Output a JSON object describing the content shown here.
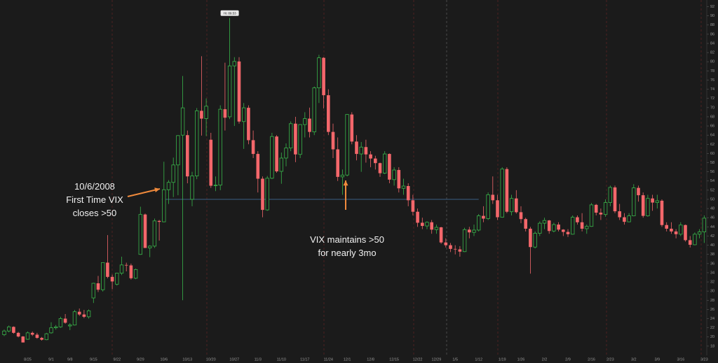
{
  "chart_data": {
    "type": "candlestick",
    "high_label": "Hi: 89.53",
    "annotations": [
      "10/6/2008",
      "First Time VIX",
      "closes >50",
      "VIX maintains >50",
      "for nearly 3mo"
    ],
    "hline": 50,
    "up_color": "#39b54a",
    "down_color": "#f4676b",
    "line_color": "#3b5f86",
    "arrow_color": "#f08a3c",
    "ylim": [
      16,
      93
    ],
    "yticks": [
      18,
      20,
      22,
      24,
      26,
      28,
      30,
      32,
      34,
      36,
      38,
      40,
      42,
      44,
      46,
      48,
      50,
      52,
      54,
      56,
      58,
      60,
      62,
      64,
      66,
      68,
      70,
      72,
      74,
      76,
      78,
      80,
      82,
      84,
      86,
      88,
      90,
      92
    ],
    "categories": [
      null,
      null,
      null,
      null,
      null,
      "8/25",
      null,
      null,
      null,
      null,
      "9/1",
      null,
      null,
      null,
      "9/8",
      null,
      null,
      null,
      null,
      "9/15",
      null,
      null,
      null,
      null,
      "9/22",
      null,
      null,
      null,
      null,
      "9/29",
      null,
      null,
      null,
      null,
      "10/6",
      null,
      null,
      null,
      null,
      "10/13",
      null,
      null,
      null,
      null,
      "10/20",
      null,
      null,
      null,
      null,
      "10/27",
      null,
      null,
      null,
      null,
      "11/3",
      null,
      null,
      null,
      null,
      "11/10",
      null,
      null,
      null,
      null,
      "11/17",
      null,
      null,
      null,
      null,
      "11/24",
      null,
      null,
      null,
      "12/1",
      null,
      null,
      null,
      null,
      "12/8",
      null,
      null,
      null,
      null,
      "12/15",
      null,
      null,
      null,
      null,
      "12/22",
      null,
      null,
      null,
      "12/29",
      null,
      null,
      null,
      "1/5",
      null,
      null,
      null,
      null,
      "1/12",
      null,
      null,
      null,
      null,
      "1/19",
      null,
      null,
      null,
      "1/26",
      null,
      null,
      null,
      null,
      "2/2",
      null,
      null,
      null,
      null,
      "2/9",
      null,
      null,
      null,
      null,
      "2/16",
      null,
      null,
      null,
      "2/23",
      null,
      null,
      null,
      null,
      "3/2",
      null,
      null,
      null,
      null,
      "3/9",
      null,
      null,
      null,
      null,
      "3/16",
      null,
      null,
      null,
      null,
      "3/23"
    ],
    "candles": [
      [
        20.5,
        21.6,
        20.2,
        21.3
      ],
      [
        21.3,
        22.5,
        21.0,
        22.2
      ],
      [
        22.2,
        22.3,
        20.7,
        20.9
      ],
      [
        20.9,
        21.1,
        19.9,
        20.1
      ],
      [
        20.1,
        20.2,
        18.8,
        18.8
      ],
      [
        19.5,
        21.2,
        19.4,
        20.9
      ],
      [
        20.9,
        21.2,
        20.2,
        20.5
      ],
      [
        20.5,
        20.9,
        19.6,
        19.8
      ],
      [
        19.8,
        20.0,
        19.2,
        19.4
      ],
      [
        19.4,
        20.9,
        19.3,
        20.7
      ],
      [
        20.9,
        23.2,
        20.7,
        22.0
      ],
      [
        22.0,
        22.6,
        21.6,
        22.2
      ],
      [
        22.2,
        24.4,
        22.0,
        24.0
      ],
      [
        24.0,
        25.0,
        22.9,
        23.1
      ],
      [
        22.4,
        23.0,
        21.5,
        22.6
      ],
      [
        22.6,
        25.9,
        22.5,
        25.5
      ],
      [
        25.5,
        26.2,
        24.6,
        24.9
      ],
      [
        24.9,
        25.9,
        24.1,
        24.4
      ],
      [
        24.4,
        26.0,
        24.0,
        25.7
      ],
      [
        28.5,
        31.8,
        27.4,
        31.7
      ],
      [
        31.7,
        33.3,
        29.8,
        30.3
      ],
      [
        30.3,
        36.2,
        29.9,
        36.2
      ],
      [
        36.2,
        42.2,
        32.8,
        33.1
      ],
      [
        33.1,
        33.6,
        30.4,
        32.1
      ],
      [
        31.5,
        34.0,
        31.2,
        33.9
      ],
      [
        33.9,
        37.5,
        33.5,
        35.7
      ],
      [
        35.7,
        36.2,
        34.3,
        35.6
      ],
      [
        35.6,
        36.0,
        32.5,
        32.8
      ],
      [
        32.8,
        34.9,
        32.6,
        34.7
      ],
      [
        38.0,
        48.4,
        37.9,
        46.7
      ],
      [
        46.7,
        46.9,
        39.4,
        39.4
      ],
      [
        39.4,
        40.0,
        37.4,
        39.8
      ],
      [
        39.8,
        45.8,
        39.4,
        45.3
      ],
      [
        45.3,
        45.5,
        41.0,
        45.1
      ],
      [
        45.1,
        58.2,
        45.0,
        52.1
      ],
      [
        52.1,
        54.2,
        49.0,
        53.7
      ],
      [
        53.7,
        59.1,
        50.5,
        57.5
      ],
      [
        57.5,
        64.0,
        50.9,
        63.9
      ],
      [
        64.0,
        76.9,
        28.0,
        69.95
      ],
      [
        64.0,
        65.0,
        53.5,
        55.0
      ],
      [
        50.0,
        56.0,
        48.5,
        55.1
      ],
      [
        55.1,
        69.9,
        54.4,
        69.3
      ],
      [
        69.3,
        81.2,
        63.9,
        67.6
      ],
      [
        67.6,
        72.0,
        63.8,
        70.3
      ],
      [
        63.0,
        64.5,
        52.5,
        52.97
      ],
      [
        52.97,
        55.0,
        51.8,
        53.1
      ],
      [
        53.1,
        70.5,
        52.0,
        69.65
      ],
      [
        69.65,
        79.8,
        65.0,
        67.8
      ],
      [
        68.0,
        89.53,
        67.5,
        79.1
      ],
      [
        79.1,
        81.0,
        66.0,
        80.06
      ],
      [
        80.06,
        81.0,
        66.5,
        66.96
      ],
      [
        66.96,
        71.0,
        61.0,
        69.96
      ],
      [
        69.96,
        70.5,
        62.0,
        62.9
      ],
      [
        62.9,
        65.0,
        59.0,
        59.9
      ],
      [
        59.9,
        60.5,
        51.5,
        54.5
      ],
      [
        54.5,
        55.0,
        46.1,
        47.7
      ],
      [
        47.7,
        55.1,
        47.5,
        54.6
      ],
      [
        54.6,
        64.5,
        54.4,
        63.7
      ],
      [
        63.7,
        64.0,
        55.8,
        56.1
      ],
      [
        56.1,
        60.2,
        53.4,
        59.0
      ],
      [
        59.0,
        62.2,
        57.2,
        61.2
      ],
      [
        61.2,
        67.0,
        60.5,
        66.5
      ],
      [
        66.5,
        68.0,
        58.1,
        59.8
      ],
      [
        59.8,
        66.4,
        59.0,
        66.3
      ],
      [
        66.3,
        69.0,
        63.5,
        67.6
      ],
      [
        67.6,
        70.0,
        63.5,
        64.7
      ],
      [
        64.7,
        74.6,
        64.0,
        74.3
      ],
      [
        74.3,
        81.5,
        71.0,
        80.86
      ],
      [
        80.86,
        81.0,
        69.8,
        72.7
      ],
      [
        72.7,
        74.0,
        64.0,
        64.7
      ],
      [
        64.7,
        66.5,
        59.0,
        60.9
      ],
      [
        60.9,
        63.5,
        54.0,
        54.9
      ],
      [
        54.9,
        56.5,
        51.0,
        55.3
      ],
      [
        55.3,
        68.6,
        55.0,
        68.5
      ],
      [
        68.5,
        69.0,
        62.0,
        62.6
      ],
      [
        62.6,
        64.0,
        58.5,
        59.9
      ],
      [
        59.9,
        62.5,
        56.0,
        61.4
      ],
      [
        61.4,
        63.0,
        58.0,
        59.8
      ],
      [
        59.8,
        60.5,
        57.0,
        58.9
      ],
      [
        58.9,
        59.5,
        56.5,
        57.9
      ],
      [
        57.9,
        58.0,
        54.9,
        55.7
      ],
      [
        55.7,
        60.5,
        55.5,
        59.9
      ],
      [
        59.9,
        60.0,
        53.5,
        54.3
      ],
      [
        54.3,
        57.0,
        53.0,
        56.4
      ],
      [
        56.4,
        57.0,
        51.5,
        52.4
      ],
      [
        52.4,
        54.5,
        51.0,
        52.9
      ],
      [
        52.9,
        53.5,
        48.5,
        49.8
      ],
      [
        49.8,
        51.0,
        46.5,
        47.3
      ],
      [
        47.3,
        48.0,
        44.0,
        44.9
      ],
      [
        44.9,
        46.0,
        43.5,
        44.2
      ],
      [
        44.2,
        45.2,
        43.5,
        45.0
      ],
      [
        45.0,
        45.5,
        42.5,
        43.4
      ],
      [
        43.4,
        44.5,
        42.5,
        43.9
      ],
      [
        43.9,
        44.0,
        40.3,
        40.6
      ],
      [
        40.6,
        41.5,
        39.5,
        40.0
      ],
      [
        40.0,
        40.5,
        38.5,
        39.2
      ],
      [
        39.2,
        40.0,
        38.0,
        39.1
      ],
      [
        39.1,
        39.8,
        37.5,
        38.6
      ],
      [
        38.6,
        43.8,
        38.5,
        43.4
      ],
      [
        43.4,
        44.0,
        41.5,
        42.8
      ],
      [
        42.8,
        44.5,
        42.0,
        43.3
      ],
      [
        43.3,
        46.8,
        43.0,
        46.4
      ],
      [
        46.4,
        48.5,
        45.0,
        45.8
      ],
      [
        45.8,
        51.5,
        45.5,
        51.0
      ],
      [
        51.0,
        55.0,
        49.0,
        49.8
      ],
      [
        49.8,
        51.0,
        45.5,
        46.1
      ],
      [
        46.1,
        57.0,
        46.0,
        56.6
      ],
      [
        56.6,
        57.0,
        47.0,
        47.3
      ],
      [
        47.3,
        51.0,
        46.5,
        50.2
      ],
      [
        50.2,
        52.0,
        46.9,
        47.2
      ],
      [
        47.2,
        48.5,
        44.8,
        45.7
      ],
      [
        45.7,
        46.0,
        43.0,
        43.6
      ],
      [
        43.6,
        44.0,
        33.8,
        39.6
      ],
      [
        39.6,
        43.0,
        39.3,
        42.6
      ],
      [
        42.6,
        45.2,
        42.0,
        44.8
      ],
      [
        44.8,
        46.0,
        43.5,
        45.4
      ],
      [
        45.4,
        45.5,
        42.5,
        43.1
      ],
      [
        43.1,
        44.9,
        42.8,
        44.5
      ],
      [
        44.5,
        45.0,
        43.0,
        43.4
      ],
      [
        43.4,
        43.5,
        42.0,
        42.9
      ],
      [
        42.9,
        43.5,
        41.8,
        42.4
      ],
      [
        42.4,
        46.5,
        42.3,
        46.1
      ],
      [
        46.1,
        46.5,
        44.5,
        45.0
      ],
      [
        45.0,
        47.0,
        43.0,
        43.6
      ],
      [
        43.6,
        44.5,
        42.5,
        44.1
      ],
      [
        44.1,
        49.2,
        44.0,
        48.8
      ],
      [
        48.8,
        49.0,
        46.5,
        47.1
      ],
      [
        47.1,
        48.0,
        45.5,
        46.7
      ],
      [
        46.7,
        50.0,
        46.2,
        49.3
      ],
      [
        49.3,
        53.0,
        48.5,
        52.6
      ],
      [
        52.6,
        53.0,
        47.0,
        47.4
      ],
      [
        47.4,
        49.0,
        45.5,
        46.1
      ],
      [
        46.1,
        47.0,
        44.5,
        45.1
      ],
      [
        45.1,
        47.0,
        45.0,
        46.4
      ],
      [
        46.4,
        53.3,
        46.3,
        52.5
      ],
      [
        52.5,
        53.0,
        49.5,
        50.9
      ],
      [
        50.9,
        51.5,
        46.0,
        46.4
      ],
      [
        46.4,
        51.0,
        46.2,
        50.2
      ],
      [
        50.2,
        51.0,
        47.5,
        49.3
      ],
      [
        49.3,
        51.0,
        48.0,
        49.7
      ],
      [
        49.7,
        50.0,
        44.0,
        44.4
      ],
      [
        44.4,
        45.0,
        43.0,
        43.6
      ],
      [
        43.6,
        45.0,
        42.5,
        43.0
      ],
      [
        43.0,
        43.5,
        41.5,
        42.4
      ],
      [
        42.4,
        45.0,
        42.0,
        44.4
      ],
      [
        44.4,
        44.5,
        40.8,
        41.1
      ],
      [
        41.1,
        42.0,
        39.5,
        40.1
      ],
      [
        40.1,
        42.8,
        40.0,
        42.4
      ],
      [
        42.4,
        43.5,
        41.5,
        42.9
      ],
      [
        42.9,
        46.5,
        40.5,
        45.9
      ]
    ]
  }
}
